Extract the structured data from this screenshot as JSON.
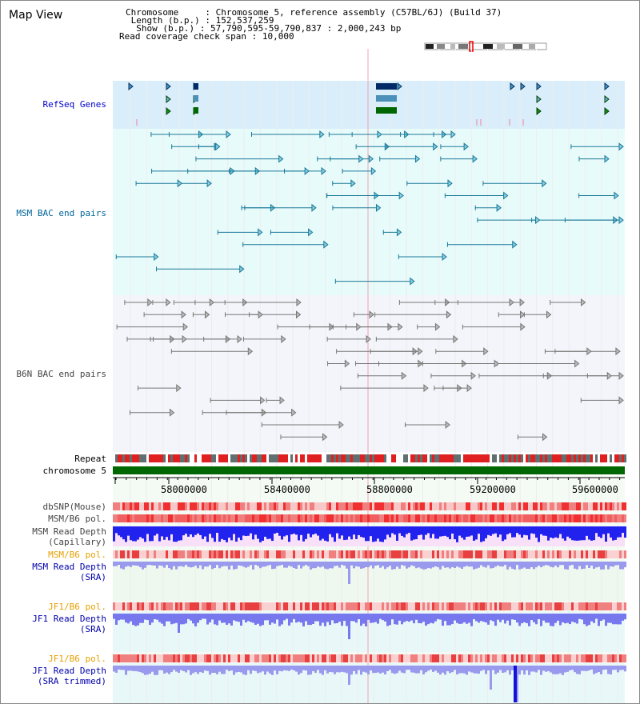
{
  "header": {
    "title": "Map View",
    "chromosome_label": "Chromosome",
    "chromosome_value": "Chromosome 5, reference assembly (C57BL/6J) (Build 37)",
    "length_label": "Length (b.p.)",
    "length_value": "152,537,259",
    "show_label": "Show (b.p.)",
    "show_value": "57,790,595-59,790,837 : 2,000,243 bp",
    "read_coverage_label": "Read coverage check span",
    "read_coverage_value": "10,000"
  },
  "tracks": {
    "refseq": "RefSeq Genes",
    "msm_bac": "MSM BAC end pairs",
    "b6n_bac": "B6N BAC end pairs",
    "repeat": "Repeat",
    "chromosome": "chromosome 5",
    "dbsnp": "dbSNP(Mouse)",
    "msm_b6_pol": "MSM/B6 pol.",
    "msm_read_depth_cap_1": "MSM Read Depth",
    "msm_read_depth_cap_2": "(Capillary)",
    "msm_b6_pol_2": "MSM/B6 pol.",
    "msm_read_depth_sra_1": "MSM Read Depth",
    "msm_read_depth_sra_2": "(SRA)",
    "jf1_b6_pol": "JF1/B6 pol.",
    "jf1_read_depth_sra_1": "JF1 Read Depth",
    "jf1_read_depth_sra_2": "(SRA)",
    "jf1_b6_pol_2": "JF1/B6 pol.",
    "jf1_read_depth_trim_1": "JF1 Read Depth",
    "jf1_read_depth_trim_2": "(SRA trimmed)"
  },
  "ruler": {
    "ticks": [
      "58000000",
      "58400000",
      "58800000",
      "59200000",
      "59600000"
    ]
  },
  "colors": {
    "refseq_label": "#0000cc",
    "msm_label": "#006699",
    "b6n_label": "#444444",
    "orange_label": "#e6a000",
    "blue_label": "#0000aa",
    "msm_bac": "#1a7a99",
    "b6n_bac": "#777777",
    "chromosome_bar": "#006600",
    "depth_blue": "#3333ff"
  }
}
